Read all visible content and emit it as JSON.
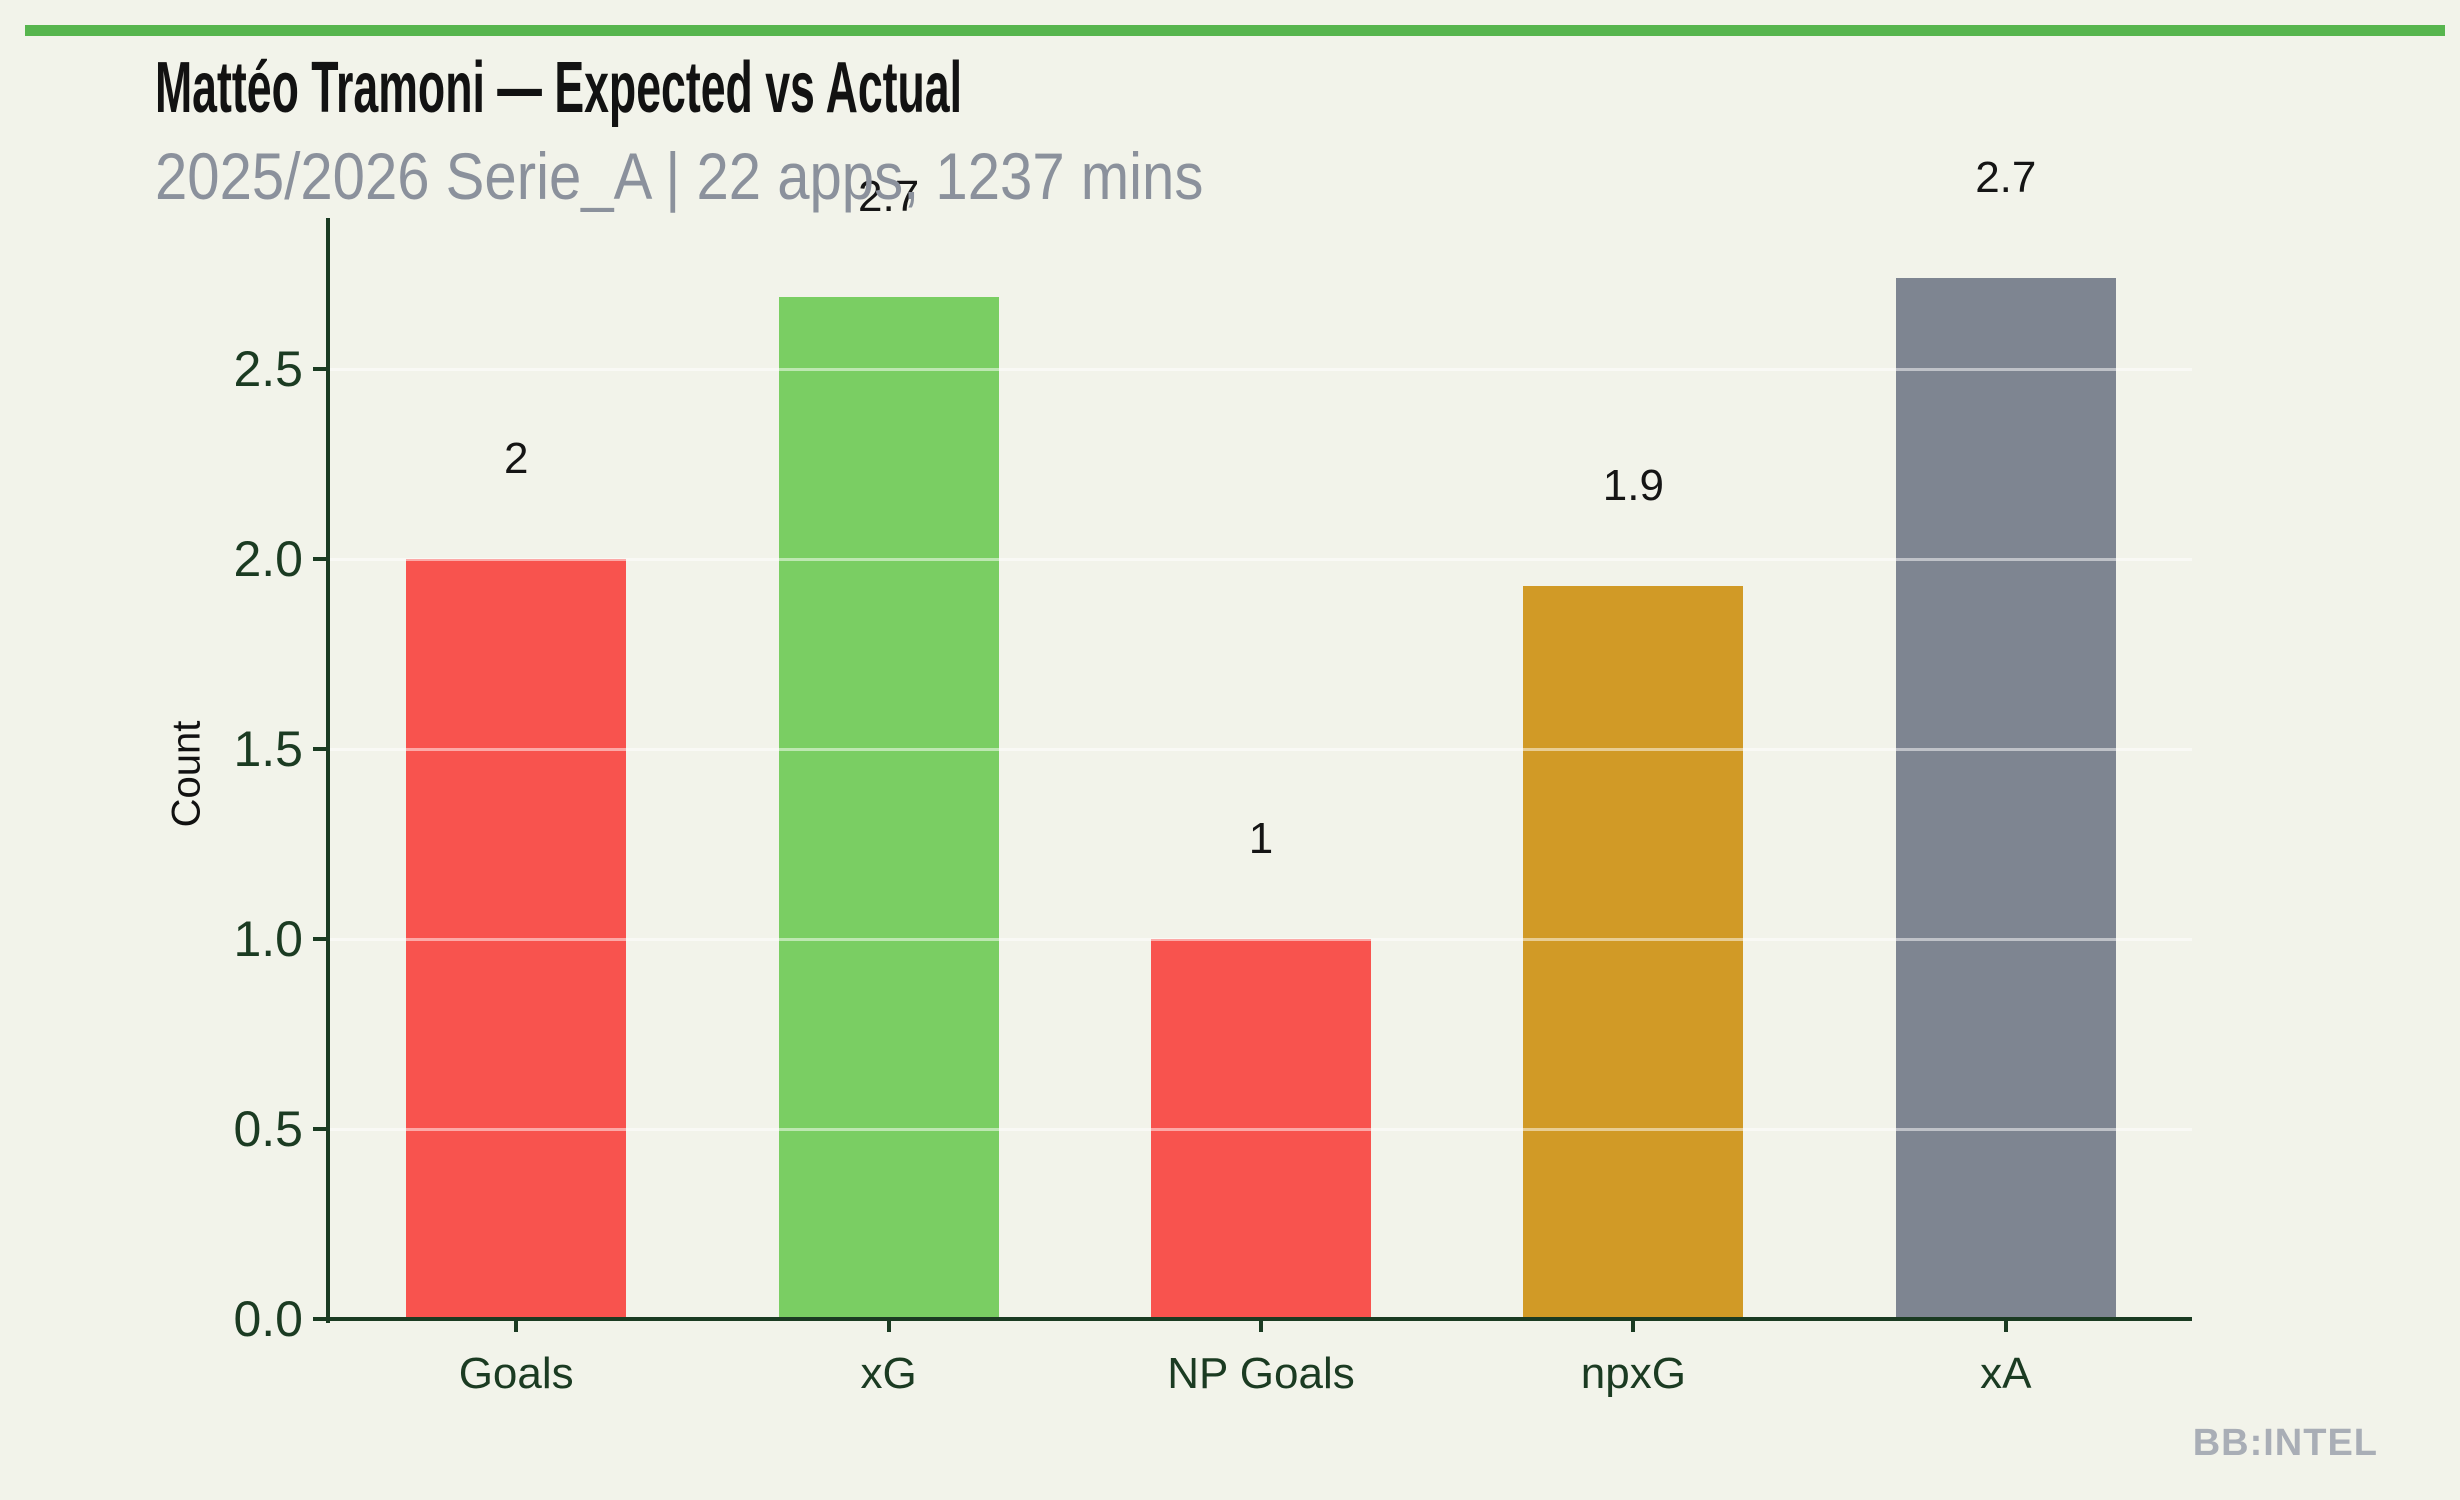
{
  "header": {
    "title": "Mattéo Tramoni — Expected vs Actual",
    "subtitle": "2025/2026 Serie_A | 22 apps, 1237 mins"
  },
  "watermark": "BB:INTEL",
  "theme": {
    "background": "#f2f3ea",
    "accent_bar_green": "#57b54e",
    "axis_dark_green": "#1b3b22",
    "title_color": "#121212",
    "subtitle_gray": "#8b919c",
    "watermark_gray": "#a9aeb6",
    "value_label_color": "#151515",
    "gridline_color": "rgba(255,255,255,0.5)"
  },
  "chart_data": {
    "type": "bar",
    "title": "Mattéo Tramoni — Expected vs Actual",
    "subtitle": "2025/2026 Serie_A | 22 apps, 1237 mins",
    "categories": [
      "Goals",
      "xG",
      "NP Goals",
      "npxG",
      "xA"
    ],
    "values": [
      2.0,
      2.69,
      1.0,
      1.93,
      2.74
    ],
    "bar_labels": [
      "2",
      "2.7",
      "1",
      "1.9",
      "2.7"
    ],
    "bar_colors": [
      "#f8534e",
      "#7ace63",
      "#f8534e",
      "#d19a26",
      "#7e8591"
    ],
    "xlabel": "",
    "ylabel": "Count",
    "yticks": [
      "0.0",
      "0.5",
      "1.0",
      "1.5",
      "2.0",
      "2.5"
    ],
    "ylim": [
      0,
      2.9
    ],
    "grid": true,
    "legend": false
  }
}
